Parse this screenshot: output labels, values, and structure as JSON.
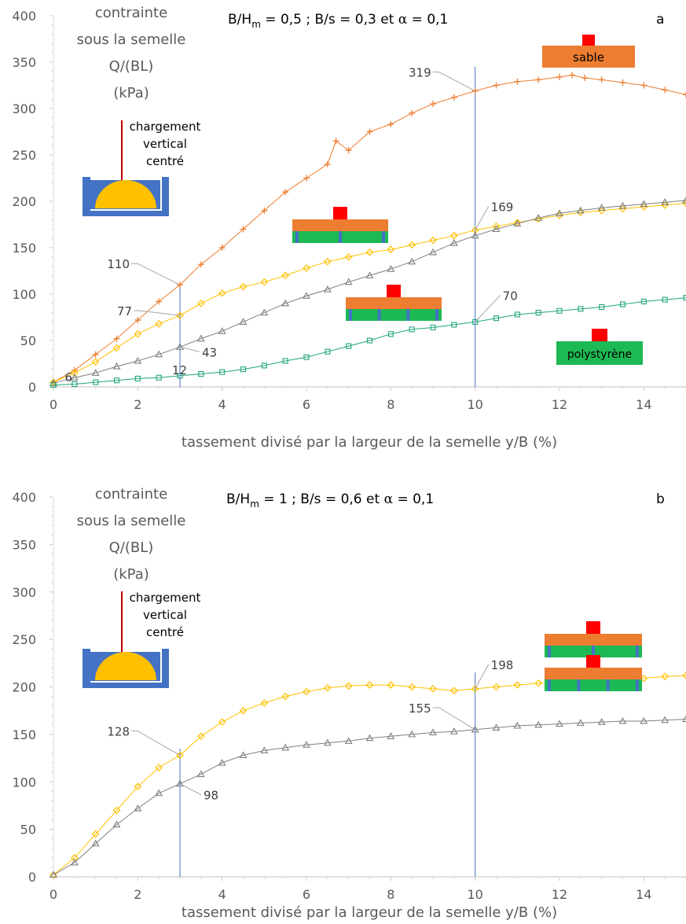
{
  "chart_data": [
    {
      "panel": "a",
      "type": "scatter",
      "title": "B/Hm = 0,5 ; B/s = 0,3 et α = 0,1",
      "title_parts": {
        "a": "B/H",
        "sub": "m",
        "b": " = 0,5 ; B/s = 0,3 et ",
        "alpha": "α",
        "c": " = 0,1"
      },
      "panel_label": "a",
      "ylabel_lines": [
        "contrainte",
        "sous la semelle",
        "Q/(BL)",
        "(kPa)"
      ],
      "xlabel": "tassement divisé par la largeur de la semelle y/B (%)",
      "load_label_lines": [
        "chargement",
        "vertical",
        "centré"
      ],
      "xlim": [
        0,
        15
      ],
      "ylim": [
        0,
        400
      ],
      "x_ticks": [
        "0",
        "2",
        "4",
        "6",
        "8",
        "10",
        "12",
        "14"
      ],
      "y_ticks": [
        "0",
        "50",
        "100",
        "150",
        "200",
        "250",
        "300",
        "350",
        "400"
      ],
      "grid": false,
      "vlines": [
        3,
        10
      ],
      "series": [
        {
          "color": "#ED7D31",
          "marker": "plus",
          "x": [
            0,
            0.5,
            1,
            1.5,
            2,
            2.5,
            3,
            3.5,
            4,
            4.5,
            5,
            5.5,
            6,
            6.5,
            6.7,
            7,
            7.5,
            8,
            8.5,
            9,
            9.5,
            10,
            10.5,
            11,
            11.5,
            12,
            12.3,
            12.6,
            13,
            13.5,
            14,
            14.5,
            15
          ],
          "y": [
            5,
            18,
            35,
            52,
            72,
            92,
            110,
            132,
            150,
            170,
            190,
            210,
            225,
            240,
            265,
            255,
            275,
            283,
            295,
            305,
            312,
            319,
            325,
            329,
            331,
            334,
            336,
            333,
            331,
            328,
            325,
            320,
            315
          ]
        },
        {
          "color": "#FFC000",
          "marker": "diamond",
          "x": [
            0,
            0.5,
            1,
            1.5,
            2,
            2.5,
            3,
            3.5,
            4,
            4.5,
            5,
            5.5,
            6,
            6.5,
            7,
            7.5,
            8,
            8.5,
            9,
            9.5,
            10,
            10.5,
            11,
            11.5,
            12,
            12.5,
            13,
            13.5,
            14,
            14.5,
            15
          ],
          "y": [
            5,
            15,
            27,
            42,
            57,
            68,
            77,
            90,
            101,
            108,
            113,
            120,
            128,
            135,
            140,
            145,
            148,
            153,
            158,
            163,
            169,
            173,
            177,
            181,
            185,
            188,
            190,
            192,
            194,
            196,
            198
          ]
        },
        {
          "color": "#7F7F7F",
          "marker": "triangle",
          "x": [
            0,
            0.5,
            1,
            1.5,
            2,
            2.5,
            3,
            3.5,
            4,
            4.5,
            5,
            5.5,
            6,
            6.5,
            7,
            7.5,
            8,
            8.5,
            9,
            9.5,
            10,
            10.5,
            11,
            11.5,
            12,
            12.5,
            13,
            13.5,
            14,
            14.5,
            15
          ],
          "y": [
            4,
            10,
            15,
            22,
            28,
            35,
            43,
            52,
            60,
            70,
            80,
            90,
            98,
            105,
            113,
            120,
            127,
            135,
            145,
            155,
            163,
            170,
            176,
            182,
            187,
            190,
            193,
            195,
            197,
            199,
            201
          ]
        },
        {
          "color": "#1FA57A",
          "marker": "square",
          "x": [
            0,
            0.5,
            1,
            1.5,
            2,
            2.5,
            3,
            3.5,
            4,
            4.5,
            5,
            5.5,
            6,
            6.5,
            7,
            7.5,
            8,
            8.5,
            9,
            9.5,
            10,
            10.5,
            11,
            11.5,
            12,
            12.5,
            13,
            13.5,
            14,
            14.5,
            15
          ],
          "y": [
            2,
            3,
            5,
            7,
            9,
            10,
            12,
            14,
            16,
            19,
            23,
            28,
            32,
            38,
            44,
            50,
            57,
            62,
            64,
            67,
            70,
            74,
            78,
            80,
            82,
            84,
            86,
            89,
            92,
            94,
            96
          ]
        }
      ],
      "annotations": [
        {
          "text": "319",
          "x": 10,
          "y": 319,
          "dx": -70,
          "dy": -18
        },
        {
          "text": "169",
          "x": 10,
          "y": 169,
          "dx": 20,
          "dy": -24
        },
        {
          "text": "110",
          "x": 3,
          "y": 110,
          "dx": -78,
          "dy": -21
        },
        {
          "text": "77",
          "x": 3,
          "y": 77,
          "dx": -75,
          "dy": 0
        },
        {
          "text": "43",
          "x": 3,
          "y": 43,
          "dx": 28,
          "dy": 12
        },
        {
          "text": "12",
          "x": 3,
          "y": 12,
          "dx": -5,
          "dy": -2
        },
        {
          "text": "70",
          "x": 10,
          "y": 70,
          "dx": 35,
          "dy": -28
        },
        {
          "text": "6",
          "x": 0.3,
          "y": 6,
          "dx": -6,
          "dy": 0
        }
      ],
      "insets": [
        {
          "type": "sand",
          "label": "sable"
        },
        {
          "type": "reinforced-3"
        },
        {
          "type": "reinforced-4"
        },
        {
          "type": "polystyrene",
          "label": "polystyrène"
        }
      ]
    },
    {
      "panel": "b",
      "type": "scatter",
      "title": "B/Hm = 1 ; B/s = 0,6 et α = 0,1",
      "title_parts": {
        "a": "B/H",
        "sub": "m",
        "b": " = 1 ; B/s = 0,6 et ",
        "alpha": "α",
        "c": " = 0,1"
      },
      "panel_label": "b",
      "ylabel_lines": [
        "contrainte",
        "sous la semelle",
        "Q/(BL)",
        "(kPa)"
      ],
      "xlabel": "tassement divisé par la largeur de la semelle y/B (%)",
      "load_label_lines": [
        "chargement",
        "vertical",
        "centré"
      ],
      "xlim": [
        0,
        15
      ],
      "ylim": [
        0,
        400
      ],
      "x_ticks": [
        "0",
        "2",
        "4",
        "6",
        "8",
        "10",
        "12",
        "14"
      ],
      "y_ticks": [
        "0",
        "50",
        "100",
        "150",
        "200",
        "250",
        "300",
        "350",
        "400"
      ],
      "grid": false,
      "vlines": [
        3,
        10
      ],
      "series": [
        {
          "color": "#FFC000",
          "marker": "diamond",
          "x": [
            0,
            0.5,
            1,
            1.5,
            2,
            2.5,
            3,
            3.5,
            4,
            4.5,
            5,
            5.5,
            6,
            6.5,
            7,
            7.5,
            8,
            8.5,
            9,
            9.5,
            10,
            10.5,
            11,
            11.5,
            12,
            12.5,
            13,
            13.5,
            14,
            14.5,
            15
          ],
          "y": [
            2,
            20,
            45,
            70,
            95,
            115,
            128,
            148,
            163,
            175,
            183,
            190,
            195,
            199,
            201,
            202,
            202,
            200,
            198,
            196,
            198,
            200,
            202,
            204,
            204,
            206,
            207,
            208,
            209,
            211,
            212
          ]
        },
        {
          "color": "#7F7F7F",
          "marker": "triangle",
          "x": [
            0,
            0.5,
            1,
            1.5,
            2,
            2.5,
            3,
            3.5,
            4,
            4.5,
            5,
            5.5,
            6,
            6.5,
            7,
            7.5,
            8,
            8.5,
            9,
            9.5,
            10,
            10.5,
            11,
            11.5,
            12,
            12.5,
            13,
            13.5,
            14,
            14.5,
            15
          ],
          "y": [
            2,
            15,
            35,
            55,
            72,
            88,
            98,
            108,
            120,
            128,
            133,
            136,
            139,
            141,
            143,
            146,
            148,
            150,
            152,
            153,
            155,
            157,
            159,
            160,
            161,
            162,
            163,
            164,
            164,
            165,
            166
          ]
        }
      ],
      "annotations": [
        {
          "text": "198",
          "x": 10,
          "y": 198,
          "dx": 20,
          "dy": -25
        },
        {
          "text": "155",
          "x": 10,
          "y": 155,
          "dx": -70,
          "dy": -22
        },
        {
          "text": "128",
          "x": 3,
          "y": 128,
          "dx": -78,
          "dy": -25
        },
        {
          "text": "98",
          "x": 3,
          "y": 98,
          "dx": 30,
          "dy": 20
        }
      ],
      "insets": [
        {
          "type": "reinforced-3"
        },
        {
          "type": "reinforced-4"
        }
      ]
    }
  ]
}
